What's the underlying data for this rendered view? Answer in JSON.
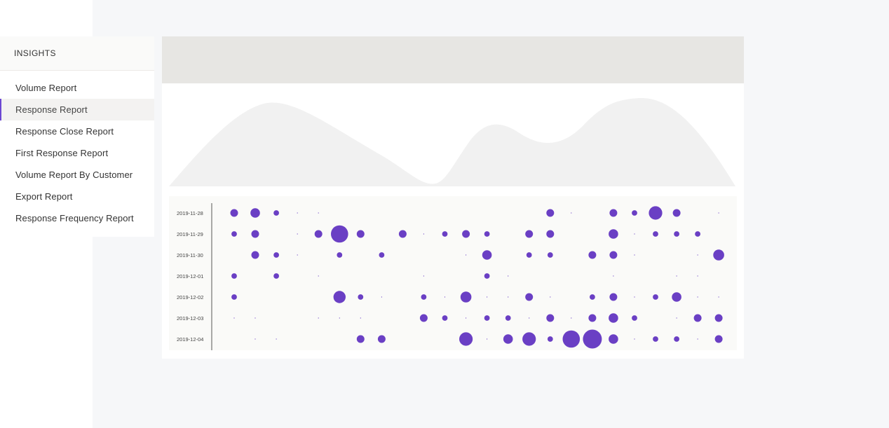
{
  "sidebar": {
    "title": "INSIGHTS",
    "items": [
      {
        "label": "Volume Report",
        "active": false
      },
      {
        "label": "Response Report",
        "active": true
      },
      {
        "label": "Response Close Report",
        "active": false
      },
      {
        "label": "First Response Report",
        "active": false
      },
      {
        "label": "Volume Report By Customer",
        "active": false
      },
      {
        "label": "Export Report",
        "active": false
      },
      {
        "label": "Response Frequency Report",
        "active": false
      }
    ]
  },
  "colors": {
    "accent": "#6c47d3",
    "bubble": "#6a3fc4",
    "loading_header": "#e7e6e3",
    "loading_wave": "#f1f1f1"
  },
  "chart_data": {
    "type": "scatter",
    "subtype": "bubble",
    "rows": [
      "2019-11-28",
      "2019-11-29",
      "2019-11-30",
      "2019-12-01",
      "2019-12-02",
      "2019-12-03",
      "2019-12-04"
    ],
    "columns": 24,
    "xlabel": "",
    "ylabel": "",
    "matrix": [
      [
        2,
        3,
        1,
        0.3,
        0.3,
        0,
        0,
        0,
        0,
        0,
        0,
        0,
        0,
        0,
        0,
        2,
        0.3,
        0,
        2,
        1,
        6,
        2,
        0,
        0.3
      ],
      [
        1,
        2,
        0,
        0.3,
        2,
        10,
        2,
        0,
        2,
        0.3,
        1,
        2,
        1,
        0,
        2,
        2,
        0,
        0,
        3,
        0.3,
        1,
        1,
        1,
        0
      ],
      [
        0,
        2,
        1,
        0.3,
        0,
        1,
        0,
        1,
        0,
        0,
        0,
        0.3,
        3,
        0,
        1,
        1,
        0,
        2,
        2,
        0.3,
        0,
        0,
        0.3,
        4
      ],
      [
        1,
        0,
        1,
        0,
        0.3,
        0,
        0,
        0,
        0,
        0.3,
        0,
        0,
        1,
        0.3,
        0,
        0,
        0,
        0,
        0.3,
        0,
        0,
        0.3,
        0.3,
        0
      ],
      [
        1,
        0,
        0,
        0,
        0,
        5,
        1,
        0.3,
        0,
        1,
        0.3,
        4,
        0.3,
        0.3,
        2,
        0.3,
        0,
        1,
        2,
        0.3,
        1,
        3,
        0.3,
        0.3
      ],
      [
        0.3,
        0.3,
        0,
        0,
        0.3,
        0.3,
        0.3,
        0,
        0,
        2,
        1,
        0.3,
        1,
        1,
        0.3,
        2,
        0.3,
        2,
        3,
        1,
        0,
        0.3,
        2,
        2
      ],
      [
        0,
        0.3,
        0.3,
        0,
        0,
        0,
        2,
        2,
        0,
        0,
        0,
        6,
        0.3,
        3,
        6,
        1,
        10,
        12,
        3,
        0.3,
        1,
        1,
        0.3,
        2
      ]
    ]
  }
}
